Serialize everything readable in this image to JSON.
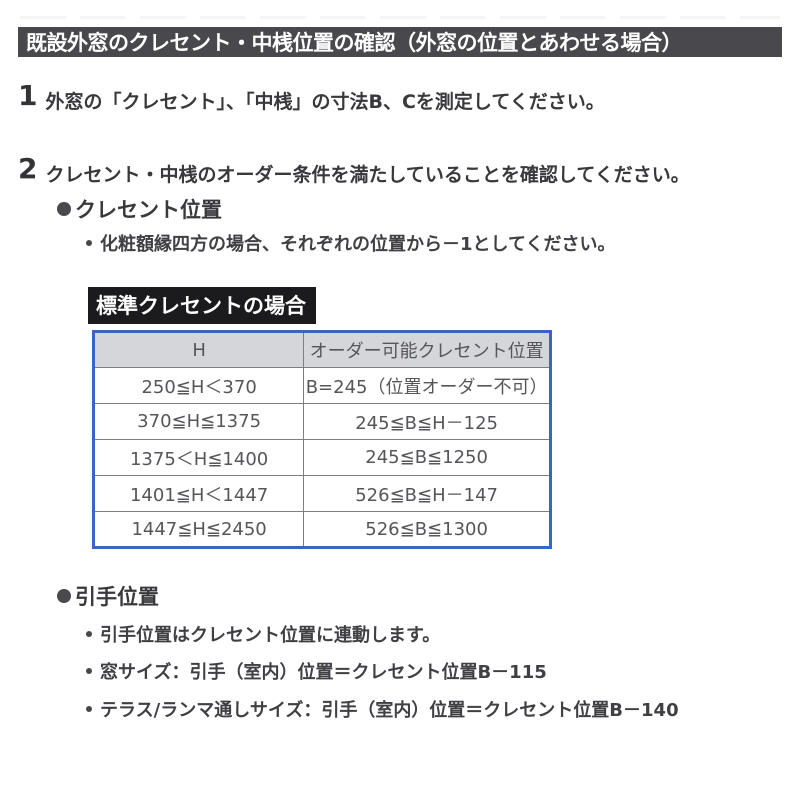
{
  "title": "既設外窓のクレセント・中桟位置の確認（外窓の位置とあわせる場合）",
  "steps": [
    {
      "number": "1",
      "text": "外窓の「クレセント」、「中桟」の寸法B、Cを測定してください。"
    },
    {
      "number": "2",
      "text": "クレセント・中桟のオーダー条件を満たしていることを確認してください。"
    }
  ],
  "crescent_section": {
    "heading": "クレセント位置",
    "note": "化粧額縁四方の場合、それぞれの位置から－1としてください。",
    "table_label": "標準クレセントの場合",
    "table": {
      "headers": [
        "H",
        "オーダー可能クレセント位置"
      ],
      "rows": [
        [
          "250≦H＜370",
          "B=245（位置オーダー不可）"
        ],
        [
          "370≦H≦1375",
          "245≦B≦H－125"
        ],
        [
          "1375＜H≦1400",
          "245≦B≦1250"
        ],
        [
          "1401≦H＜1447",
          "526≦B≦H－147"
        ],
        [
          "1447≦H≦2450",
          "526≦B≦1300"
        ]
      ]
    }
  },
  "handle_section": {
    "heading": "引手位置",
    "notes": [
      "引手位置はクレセント位置に連動します。",
      "窓サイズ：引手（室内）位置＝クレセント位置B－115",
      "テラス/ランマ通しサイズ：引手（室内）位置＝クレセント位置B－140"
    ]
  },
  "colors": {
    "title_bar_bg": "#48484d",
    "section_label_bg": "#1b1b1d",
    "table_border": "#3f62c9",
    "table_header_bg": "#d5d6da",
    "body_text": "#3b3b3d"
  }
}
